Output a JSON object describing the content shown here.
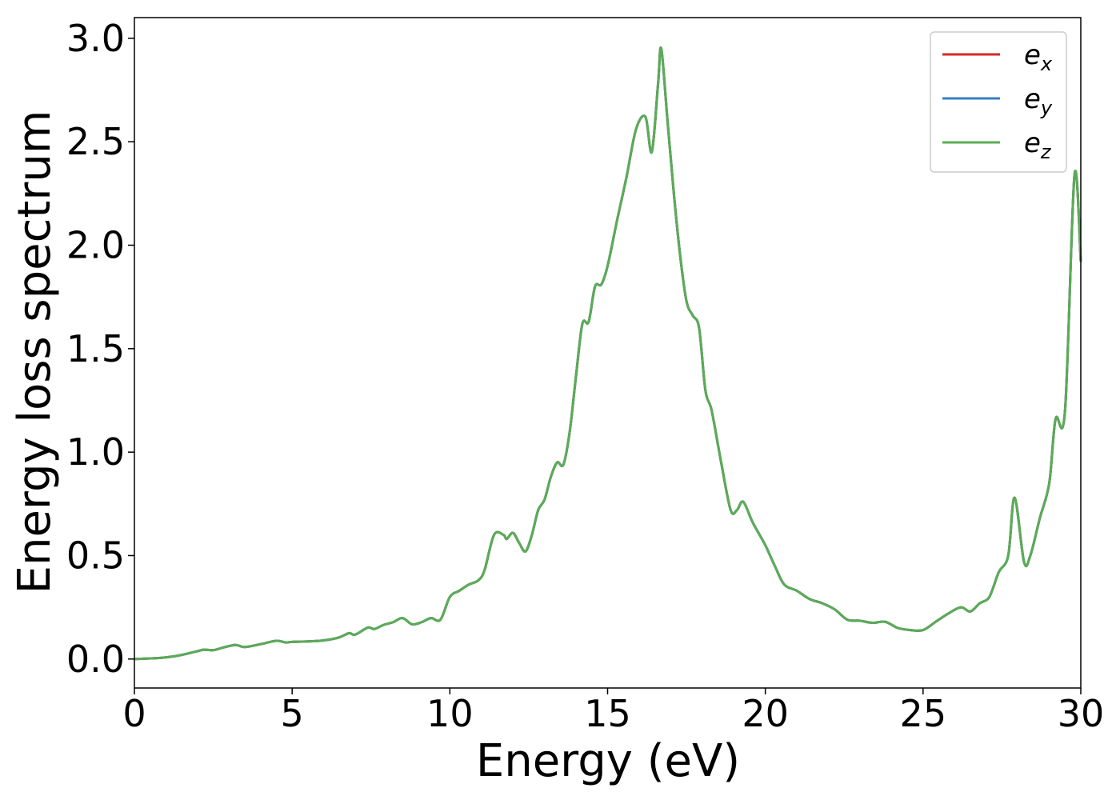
{
  "chart_data": {
    "type": "line",
    "xlabel": "Energy (eV)",
    "ylabel": "Energy loss spectrum",
    "xlim": [
      0,
      30
    ],
    "ylim": [
      -0.14,
      3.1
    ],
    "x_ticks": [
      0,
      5,
      10,
      15,
      20,
      25,
      30
    ],
    "y_ticks": [
      0.0,
      0.5,
      1.0,
      1.5,
      2.0,
      2.5,
      3.0
    ],
    "x_tick_labels": [
      "0",
      "5",
      "10",
      "15",
      "20",
      "25",
      "30"
    ],
    "y_tick_labels": [
      "0.0",
      "0.5",
      "1.0",
      "1.5",
      "2.0",
      "2.5",
      "3.0"
    ],
    "grid": false,
    "legend_position": "top-right",
    "series": [
      {
        "name": "e_x",
        "label_base": "e",
        "label_sub": "x",
        "color": "#d62728"
      },
      {
        "name": "e_y",
        "label_base": "e",
        "label_sub": "y",
        "color": "#3a7ebf"
      },
      {
        "name": "e_z",
        "label_base": "e",
        "label_sub": "z",
        "color": "#5aac56"
      }
    ],
    "shared_points": [
      [
        0.0,
        0.0
      ],
      [
        0.5,
        0.003
      ],
      [
        1.0,
        0.008
      ],
      [
        1.5,
        0.02
      ],
      [
        2.0,
        0.038
      ],
      [
        2.2,
        0.045
      ],
      [
        2.5,
        0.043
      ],
      [
        2.8,
        0.055
      ],
      [
        3.2,
        0.068
      ],
      [
        3.5,
        0.058
      ],
      [
        4.0,
        0.072
      ],
      [
        4.5,
        0.088
      ],
      [
        4.8,
        0.08
      ],
      [
        5.0,
        0.083
      ],
      [
        5.5,
        0.085
      ],
      [
        6.0,
        0.09
      ],
      [
        6.5,
        0.105
      ],
      [
        6.8,
        0.125
      ],
      [
        7.0,
        0.118
      ],
      [
        7.4,
        0.152
      ],
      [
        7.6,
        0.145
      ],
      [
        7.9,
        0.165
      ],
      [
        8.2,
        0.178
      ],
      [
        8.5,
        0.198
      ],
      [
        8.8,
        0.168
      ],
      [
        9.1,
        0.178
      ],
      [
        9.4,
        0.198
      ],
      [
        9.7,
        0.19
      ],
      [
        10.0,
        0.3
      ],
      [
        10.3,
        0.33
      ],
      [
        10.6,
        0.36
      ],
      [
        10.9,
        0.38
      ],
      [
        11.1,
        0.43
      ],
      [
        11.4,
        0.6
      ],
      [
        11.7,
        0.6
      ],
      [
        11.8,
        0.58
      ],
      [
        12.0,
        0.61
      ],
      [
        12.2,
        0.56
      ],
      [
        12.4,
        0.52
      ],
      [
        12.6,
        0.6
      ],
      [
        12.8,
        0.72
      ],
      [
        13.0,
        0.77
      ],
      [
        13.2,
        0.88
      ],
      [
        13.4,
        0.95
      ],
      [
        13.6,
        0.94
      ],
      [
        13.8,
        1.1
      ],
      [
        14.0,
        1.37
      ],
      [
        14.2,
        1.62
      ],
      [
        14.4,
        1.63
      ],
      [
        14.6,
        1.8
      ],
      [
        14.8,
        1.81
      ],
      [
        15.0,
        1.9
      ],
      [
        15.3,
        2.12
      ],
      [
        15.6,
        2.33
      ],
      [
        15.9,
        2.56
      ],
      [
        16.2,
        2.62
      ],
      [
        16.4,
        2.45
      ],
      [
        16.6,
        2.78
      ],
      [
        16.7,
        2.95
      ],
      [
        16.9,
        2.6
      ],
      [
        17.1,
        2.25
      ],
      [
        17.3,
        1.95
      ],
      [
        17.5,
        1.73
      ],
      [
        17.7,
        1.66
      ],
      [
        17.9,
        1.6
      ],
      [
        18.1,
        1.3
      ],
      [
        18.3,
        1.2
      ],
      [
        18.6,
        0.95
      ],
      [
        18.9,
        0.72
      ],
      [
        19.1,
        0.72
      ],
      [
        19.3,
        0.76
      ],
      [
        19.6,
        0.66
      ],
      [
        20.0,
        0.55
      ],
      [
        20.3,
        0.45
      ],
      [
        20.6,
        0.36
      ],
      [
        21.0,
        0.33
      ],
      [
        21.4,
        0.29
      ],
      [
        21.8,
        0.27
      ],
      [
        22.2,
        0.24
      ],
      [
        22.6,
        0.19
      ],
      [
        23.0,
        0.185
      ],
      [
        23.4,
        0.175
      ],
      [
        23.8,
        0.18
      ],
      [
        24.2,
        0.15
      ],
      [
        24.6,
        0.14
      ],
      [
        25.0,
        0.14
      ],
      [
        25.4,
        0.18
      ],
      [
        25.8,
        0.22
      ],
      [
        26.2,
        0.25
      ],
      [
        26.5,
        0.23
      ],
      [
        26.8,
        0.27
      ],
      [
        27.1,
        0.3
      ],
      [
        27.4,
        0.42
      ],
      [
        27.7,
        0.5
      ],
      [
        27.9,
        0.78
      ],
      [
        28.2,
        0.47
      ],
      [
        28.4,
        0.5
      ],
      [
        28.7,
        0.68
      ],
      [
        29.0,
        0.85
      ],
      [
        29.2,
        1.16
      ],
      [
        29.5,
        1.2
      ],
      [
        29.8,
        2.34
      ],
      [
        30.0,
        1.92
      ]
    ]
  }
}
